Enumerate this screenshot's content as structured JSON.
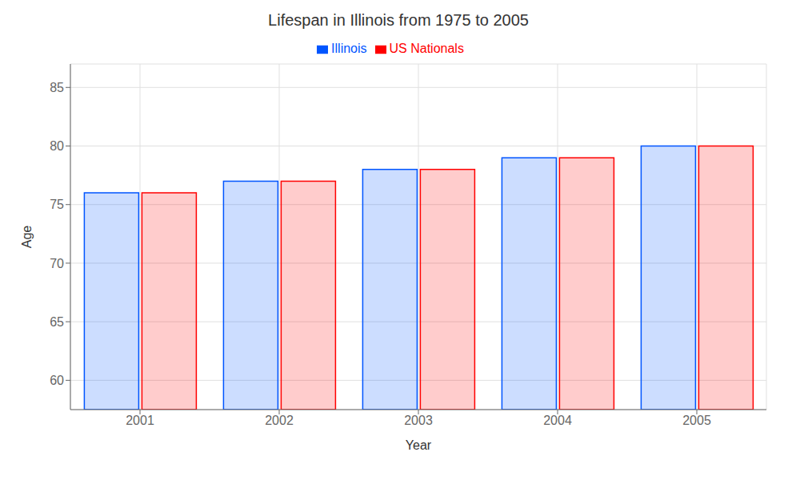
{
  "chart_data": {
    "type": "bar",
    "title": "Lifespan in Illinois from 1975 to 2005",
    "x_label": "Year",
    "y_label": "Age",
    "categories": [
      "2001",
      "2002",
      "2003",
      "2004",
      "2005"
    ],
    "series": [
      {
        "name": "Illinois",
        "color": "#0055ff",
        "values": [
          76.0,
          77.0,
          78.0,
          79.0,
          80.0
        ]
      },
      {
        "name": "US Nationals",
        "color": "#ff0000",
        "values": [
          76.0,
          77.0,
          78.0,
          79.0,
          80.0
        ]
      }
    ],
    "ylim": [
      57.5,
      87
    ],
    "yticks": [
      60,
      65,
      70,
      75,
      80,
      85
    ],
    "grid": true,
    "legend": "top"
  }
}
